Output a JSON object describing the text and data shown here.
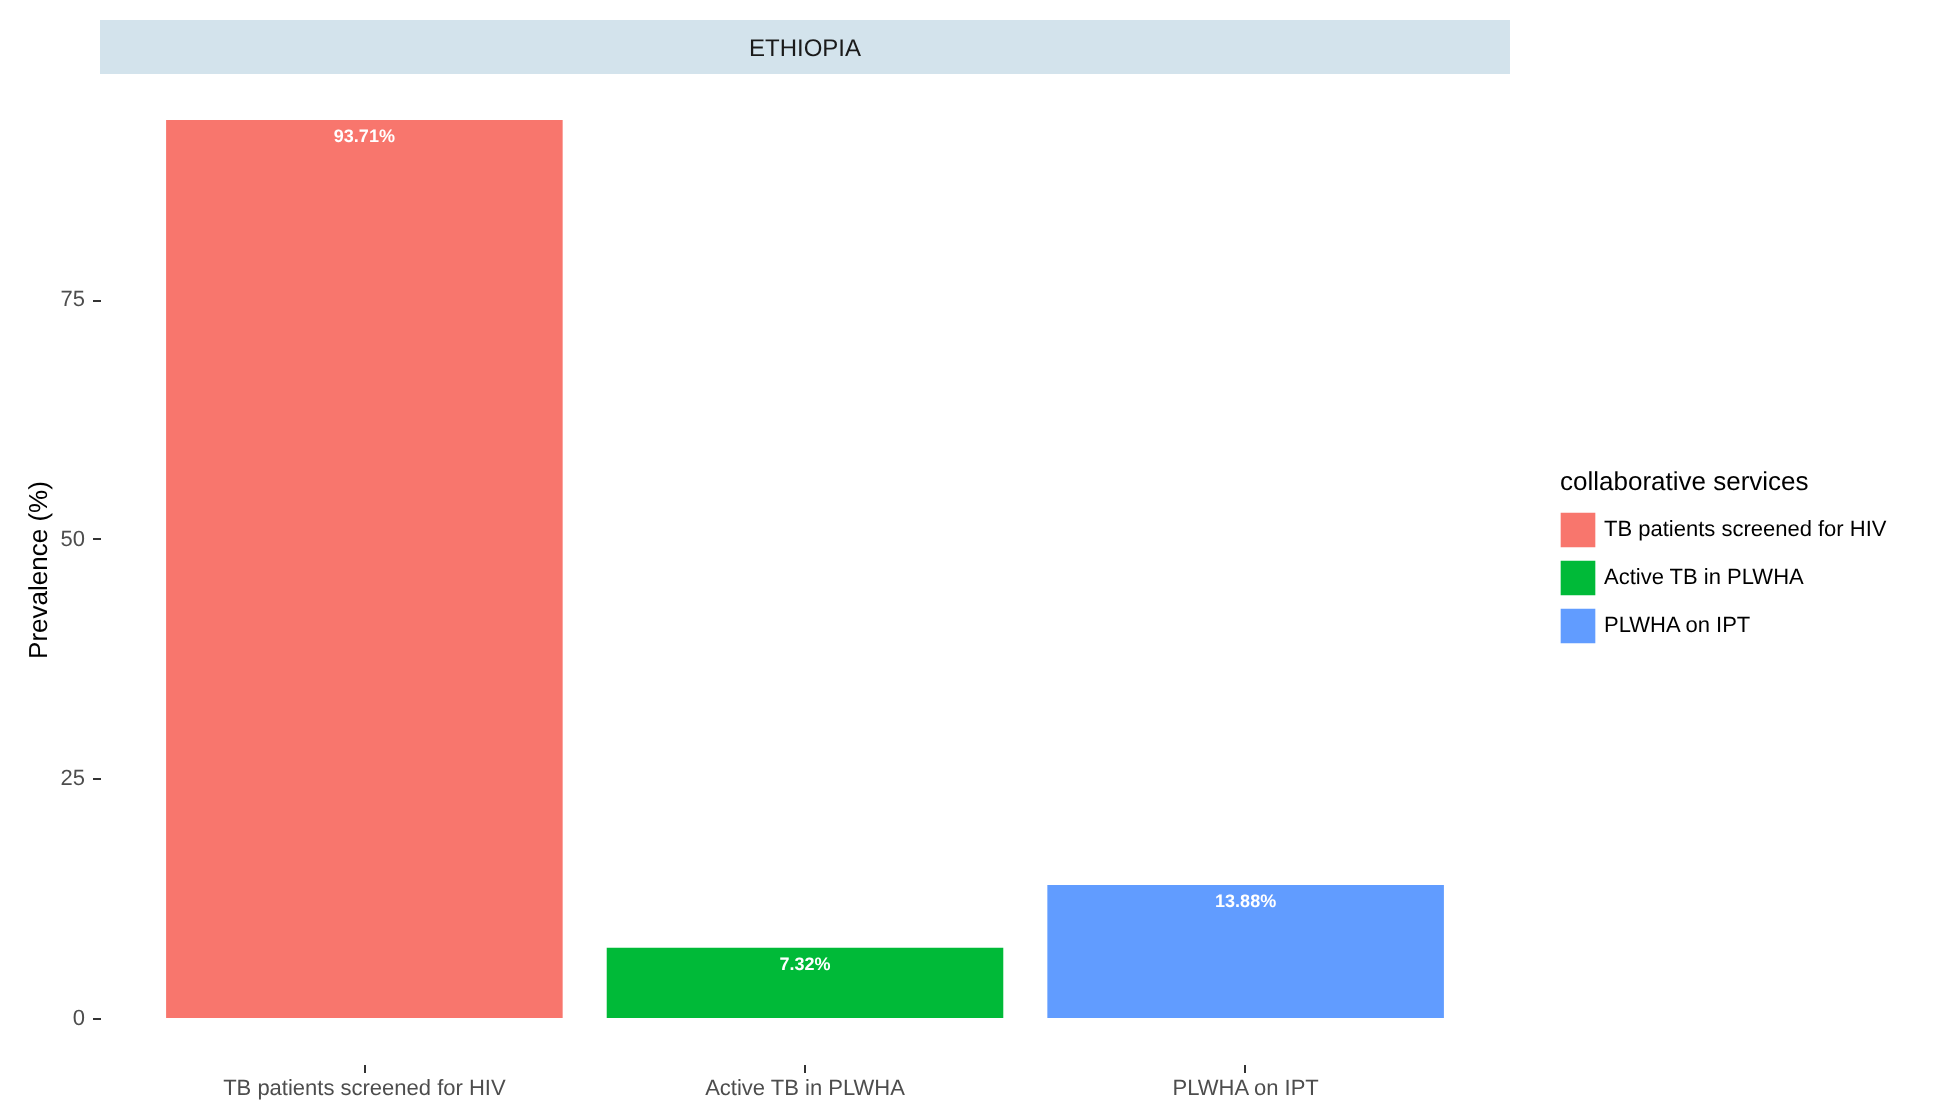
{
  "chart_data": {
    "type": "bar",
    "title": "ETHIOPIA",
    "ylabel": "Prevalence (%)",
    "legend_title": "collaborative services",
    "categories": [
      "TB patients screened for HIV",
      "Active TB in PLWHA",
      "PLWHA on  IPT"
    ],
    "series": [
      {
        "name": "TB patients screened for HIV",
        "color": "#f8766d",
        "values": [
          93.71,
          null,
          null
        ]
      },
      {
        "name": "Active TB in PLWHA",
        "color": "#00ba38",
        "values": [
          null,
          7.32,
          null
        ]
      },
      {
        "name": "PLWHA on  IPT",
        "color": "#619cff",
        "values": [
          null,
          null,
          13.88
        ]
      }
    ],
    "value_labels": [
      "93.71%",
      "7.32%",
      "13.88%"
    ],
    "ylim": [
      0,
      93.71
    ],
    "yticks": [
      0,
      25,
      50,
      75
    ],
    "grid": false,
    "legend": "right"
  }
}
